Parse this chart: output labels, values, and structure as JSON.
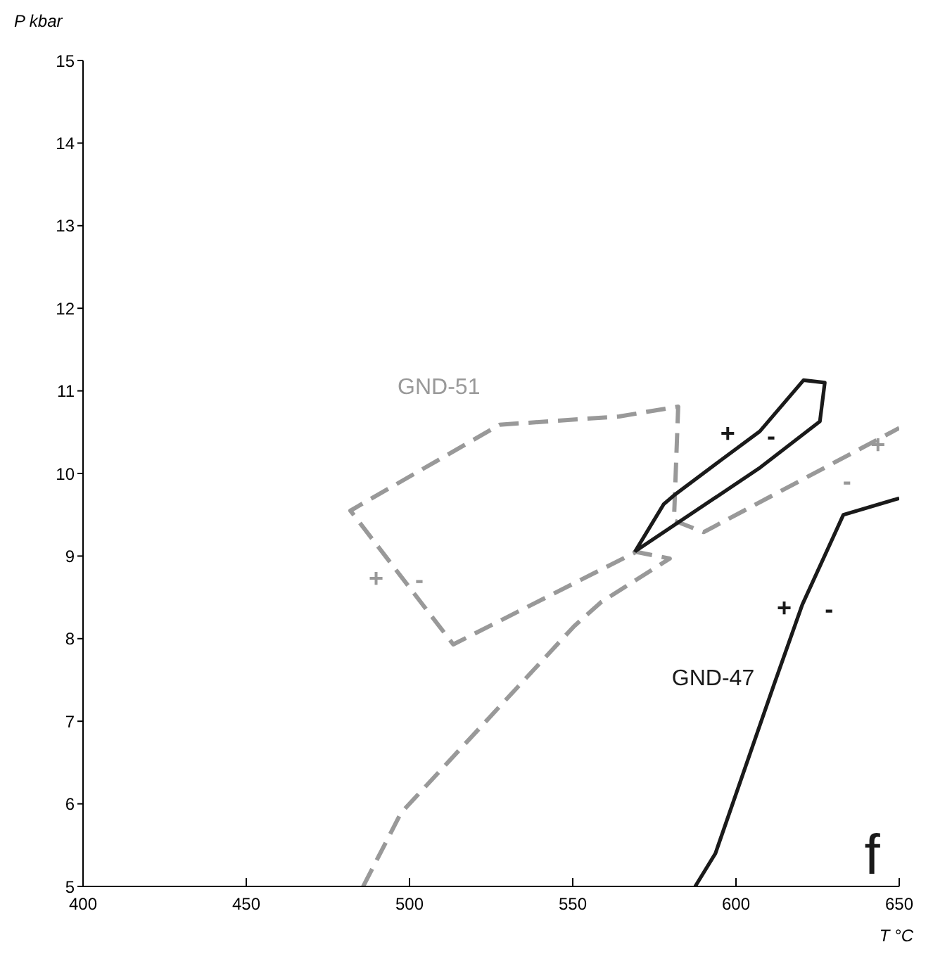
{
  "chart_data": {
    "type": "line",
    "xlabel": "T °C",
    "ylabel": "P kbar",
    "xlim": [
      400,
      650
    ],
    "xticks": [
      400,
      450,
      500,
      550,
      600,
      650
    ],
    "ylim": [
      5,
      15
    ],
    "yticks": [
      5,
      6,
      7,
      8,
      9,
      10,
      11,
      12,
      13,
      14,
      15
    ],
    "grid": false,
    "legend": false,
    "marker": "none",
    "series": [
      {
        "name": "GND-51",
        "color": "#999999",
        "line_style": "dashed",
        "x": [
          485.8,
          497.4,
          550.4,
          558.6,
          579.7,
          569.4,
          513.4,
          481.9,
          527.6,
          564.2,
          582.3,
          581.0,
          590.1,
          650
        ],
        "values": [
          5.0,
          5.89,
          8.15,
          8.44,
          8.97,
          9.05,
          7.93,
          9.55,
          10.59,
          10.69,
          10.81,
          9.43,
          9.29,
          10.55
        ]
      },
      {
        "name": "GND-47",
        "color": "#1a1a1a",
        "line_style": "solid",
        "x": [
          569.0,
          577.9,
          581.5,
          595.7,
          607.3,
          620.7,
          627.2,
          625.7,
          607.0,
          569.2,
          580.0,
          587.5,
          593.7,
          611.6,
          620.3,
          632.9,
          650
        ],
        "values": [
          9.05,
          9.63,
          9.75,
          10.17,
          10.51,
          11.13,
          11.1,
          10.63,
          10.06,
          9.06,
          null,
          5.0,
          5.4,
          7.44,
          8.41,
          9.5,
          9.7
        ]
      }
    ],
    "annotations": [
      "+",
      "-",
      "+",
      "-",
      "+",
      "-",
      "+",
      "-",
      "f"
    ]
  }
}
